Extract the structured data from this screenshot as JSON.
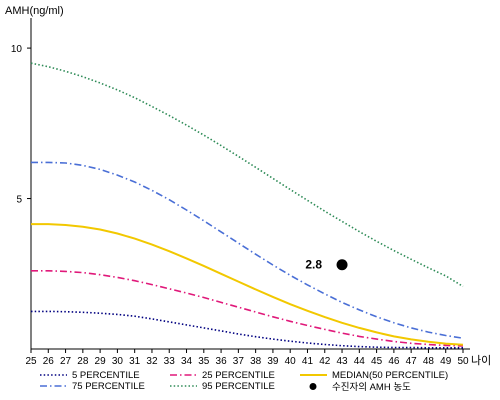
{
  "chart_data": {
    "type": "line",
    "ylabel": "AMH(ng/ml)",
    "xlabel": "나이",
    "ylim": [
      0,
      11
    ],
    "xlim": [
      25,
      50
    ],
    "yticks": [
      5,
      10
    ],
    "x": [
      25,
      26,
      27,
      28,
      29,
      30,
      31,
      32,
      33,
      34,
      35,
      36,
      37,
      38,
      39,
      40,
      41,
      42,
      43,
      44,
      45,
      46,
      47,
      48,
      49,
      50
    ],
    "series": [
      {
        "name": "5 PERCENTILE",
        "color": "#000080",
        "dash": "dot",
        "values": [
          1.25,
          1.25,
          1.24,
          1.22,
          1.19,
          1.15,
          1.09,
          1.0,
          0.9,
          0.8,
          0.7,
          0.6,
          0.5,
          0.41,
          0.33,
          0.26,
          0.2,
          0.15,
          0.11,
          0.08,
          0.06,
          0.05,
          0.05,
          0.04,
          0.04,
          0.04
        ]
      },
      {
        "name": "25 PERCENTILE",
        "color": "#e0197a",
        "dash": "dashdot",
        "values": [
          2.6,
          2.6,
          2.58,
          2.54,
          2.47,
          2.38,
          2.27,
          2.14,
          2.0,
          1.86,
          1.71,
          1.55,
          1.39,
          1.23,
          1.07,
          0.92,
          0.78,
          0.65,
          0.53,
          0.42,
          0.33,
          0.25,
          0.19,
          0.15,
          0.12,
          0.1
        ]
      },
      {
        "name": "MEDIAN(50 PERCENTILE)",
        "color": "#f2c800",
        "dash": "solid",
        "values": [
          4.15,
          4.15,
          4.12,
          4.06,
          3.97,
          3.84,
          3.67,
          3.47,
          3.25,
          3.01,
          2.76,
          2.5,
          2.24,
          1.98,
          1.73,
          1.49,
          1.27,
          1.06,
          0.87,
          0.7,
          0.55,
          0.42,
          0.32,
          0.24,
          0.18,
          0.14
        ]
      },
      {
        "name": "75 PERCENTILE",
        "color": "#4a6fd6",
        "dash": "dashdot",
        "values": [
          6.2,
          6.2,
          6.18,
          6.1,
          5.97,
          5.78,
          5.55,
          5.27,
          4.96,
          4.62,
          4.26,
          3.89,
          3.52,
          3.15,
          2.79,
          2.45,
          2.13,
          1.83,
          1.55,
          1.3,
          1.07,
          0.87,
          0.7,
          0.56,
          0.45,
          0.36
        ]
      },
      {
        "name": "95 PERCENTILE",
        "color": "#2e8b57",
        "dash": "dot",
        "values": [
          9.5,
          9.38,
          9.23,
          9.05,
          8.84,
          8.61,
          8.35,
          8.06,
          7.76,
          7.44,
          7.11,
          6.76,
          6.4,
          6.04,
          5.67,
          5.3,
          4.94,
          4.58,
          4.24,
          3.9,
          3.58,
          3.27,
          2.98,
          2.7,
          2.43,
          2.08
        ]
      }
    ],
    "point": {
      "name": "수진자의 AMH 농도",
      "x": 43,
      "y": 2.8,
      "label": "2.8",
      "color": "#000000"
    },
    "legend_position": "bottom",
    "grid": false
  }
}
